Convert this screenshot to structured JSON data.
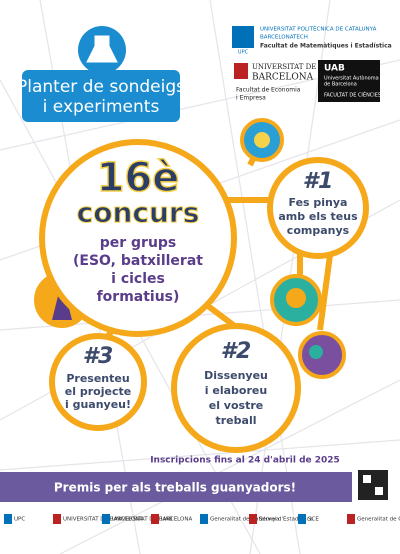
{
  "header": {
    "title_lines": [
      "Planter de sondeigs",
      "i experiments"
    ]
  },
  "logos": {
    "upc": {
      "mark": "UPC",
      "name": "UNIVERSITAT POLITÈCNICA DE CATALUNYA",
      "sub": "BARCELONATECH",
      "faculty": "Facultat de Matemàtiques i Estadística"
    },
    "ub": {
      "name_lines": [
        "UNIVERSITAT DE",
        "BARCELONA"
      ],
      "faculty_lines": [
        "Facultat de Economia",
        "i Empresa"
      ]
    },
    "uab": {
      "mark": "UAB",
      "name_lines": [
        "Universitat Autònoma",
        "de Barcelona"
      ],
      "faculty": "FACULTAT DE CIÈNCIES"
    }
  },
  "main": {
    "edition": "16è",
    "word": "concurs",
    "lines": [
      "per grups",
      "(ESO, batxillerat",
      "i cicles",
      "formatius)"
    ]
  },
  "steps": [
    {
      "number": "#1",
      "lines": [
        "Fes pinya",
        "amb els teus",
        "companys"
      ]
    },
    {
      "number": "#2",
      "lines": [
        "Dissenyeu",
        "i elaboreu",
        "el vostre",
        "treball"
      ]
    },
    {
      "number": "#3",
      "lines": [
        "Presenteu",
        "el projecte",
        "i guanyeu!"
      ]
    }
  ],
  "deadline": "Inscripcions fins al 24 d'abril de 2025",
  "prizes": "Premis per als treballs guanyadors!",
  "footer": [
    "UPC",
    "UNIVERSITAT DE BARCELONA",
    "UNIVERSITAT DE BARCELONA",
    "UAB",
    "Generalitat de Catalunya",
    "Servei d'Estadística",
    "SCE",
    "Generalitat de Catalunya"
  ]
}
